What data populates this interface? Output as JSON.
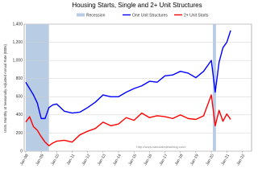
{
  "chart_data": {
    "type": "line",
    "title": "Housing Starts, Single and 2+ Unit Structures",
    "y_label": "Units, Monthly at Seasonally Adjusted Annual Rate (000s)",
    "watermark": "http://www.calculatedriskblog.com/",
    "recession": {
      "name": "Recession",
      "color": "#b8cce4",
      "spans": [
        [
          2008,
          2009.5
        ],
        [
          2020.1,
          2020.3
        ]
      ]
    },
    "x": [
      2008,
      2008.25,
      2008.5,
      2008.75,
      2009,
      2009.25,
      2009.5,
      2009.75,
      2010,
      2010.5,
      2011,
      2011.5,
      2012,
      2012.5,
      2013,
      2013.5,
      2014,
      2014.5,
      2015,
      2015.5,
      2016,
      2016.5,
      2017,
      2017.5,
      2018,
      2018.5,
      2019,
      2019.5,
      2020,
      2020.25,
      2020.5,
      2020.75,
      2021,
      2021.25
    ],
    "series": [
      {
        "name": "One Unit Structures",
        "color": "#0000ff",
        "values": [
          760,
          690,
          620,
          530,
          360,
          360,
          480,
          510,
          520,
          440,
          420,
          430,
          480,
          540,
          620,
          600,
          600,
          650,
          690,
          720,
          770,
          760,
          830,
          840,
          880,
          860,
          810,
          880,
          1000,
          650,
          980,
          1140,
          1200,
          1330
        ]
      },
      {
        "name": "2+ Unit Starts",
        "color": "#ff0000",
        "values": [
          320,
          380,
          270,
          230,
          160,
          100,
          60,
          90,
          110,
          120,
          100,
          180,
          220,
          250,
          320,
          280,
          300,
          370,
          340,
          420,
          370,
          390,
          380,
          360,
          400,
          360,
          350,
          390,
          620,
          280,
          450,
          330,
          410,
          350
        ]
      }
    ],
    "xlim": [
      2007.9,
      2022.6
    ],
    "ylim": [
      0,
      1400
    ],
    "yticks": [
      0,
      200,
      400,
      600,
      800,
      {
        "value": 1000,
        "label": "1,000"
      },
      {
        "value": 1200,
        "label": "1,200"
      },
      {
        "value": 1400,
        "label": "1,400"
      }
    ],
    "xticks": [
      {
        "value": 2008,
        "label": "Jan-08"
      },
      {
        "value": 2009,
        "label": "Jan-09"
      },
      {
        "value": 2010,
        "label": "Jan-10"
      },
      {
        "value": 2011,
        "label": "Jan-11"
      },
      {
        "value": 2012,
        "label": "Jan-12"
      },
      {
        "value": 2013,
        "label": "Jan-13"
      },
      {
        "value": 2014,
        "label": "Jan-14"
      },
      {
        "value": 2015,
        "label": "Jan-15"
      },
      {
        "value": 2016,
        "label": "Jan-16"
      },
      {
        "value": 2017,
        "label": "Jan-17"
      },
      {
        "value": 2018,
        "label": "Jan-18"
      },
      {
        "value": 2019,
        "label": "Jan-19"
      },
      {
        "value": 2020,
        "label": "Jan-20"
      },
      {
        "value": 2021,
        "label": "Jan-21"
      },
      {
        "value": 2022,
        "label": "Jan-22"
      }
    ],
    "grid": true
  }
}
